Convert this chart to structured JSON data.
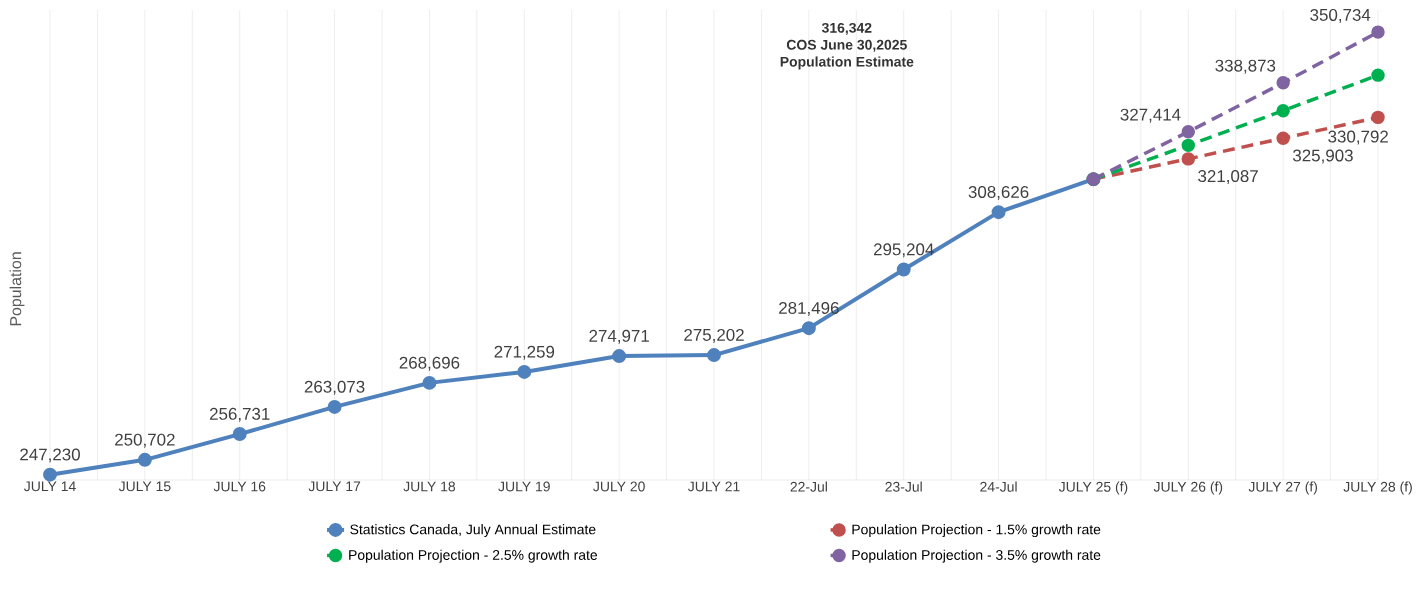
{
  "chart_data": {
    "type": "line",
    "ylabel": "Population",
    "categories": [
      "JULY 14",
      "JULY 15",
      "JULY 16",
      "JULY 17",
      "JULY 18",
      "JULY 19",
      "JULY 20",
      "JULY 21",
      "22-Jul",
      "23-Jul",
      "24-Jul",
      "JULY 25 (f)",
      "JULY 26 (f)",
      "JULY 27 (f)",
      "JULY 28 (f)"
    ],
    "series": [
      {
        "name": "Statistics Canada, July Annual Estimate",
        "color": "#4f81bd",
        "line_style": "solid",
        "values": [
          247230,
          250702,
          256731,
          263073,
          268696,
          271259,
          274971,
          275202,
          281496,
          295204,
          308626,
          316342,
          null,
          null,
          null
        ],
        "value_labels": [
          "247,230",
          "250,702",
          "256,731",
          "263,073",
          "268,696",
          "271,259",
          "274,971",
          "275,202",
          "281,496",
          "295,204",
          "308,626",
          null,
          null,
          null,
          null
        ]
      },
      {
        "name": "Population Projection - 1.5% growth rate",
        "color": "#c0504d",
        "line_style": "dashed",
        "values": [
          null,
          null,
          null,
          null,
          null,
          null,
          null,
          null,
          null,
          null,
          null,
          316342,
          321087,
          325903,
          330792
        ],
        "value_labels": [
          null,
          null,
          null,
          null,
          null,
          null,
          null,
          null,
          null,
          null,
          null,
          null,
          "321,087",
          "325,903",
          "330,792"
        ]
      },
      {
        "name": "Population Projection - 2.5% growth rate",
        "color": "#00b050",
        "line_style": "dashed",
        "values": [
          null,
          null,
          null,
          null,
          null,
          null,
          null,
          null,
          null,
          null,
          null,
          316342,
          324250,
          332360,
          340670
        ]
      },
      {
        "name": "Population Projection - 3.5% growth rate",
        "color": "#8064a2",
        "line_style": "dashed",
        "values": [
          null,
          null,
          null,
          null,
          null,
          null,
          null,
          null,
          null,
          null,
          null,
          316342,
          327414,
          338873,
          350734
        ],
        "value_labels": [
          null,
          null,
          null,
          null,
          null,
          null,
          null,
          null,
          null,
          null,
          null,
          null,
          "327,414",
          "338,873",
          "350,734"
        ]
      }
    ],
    "annotations": [
      "316,342",
      "COS June 30,2025",
      "Population Estimate"
    ],
    "marker": "circle",
    "grid": "x",
    "legend": "bottom",
    "tick_labels": "x"
  }
}
